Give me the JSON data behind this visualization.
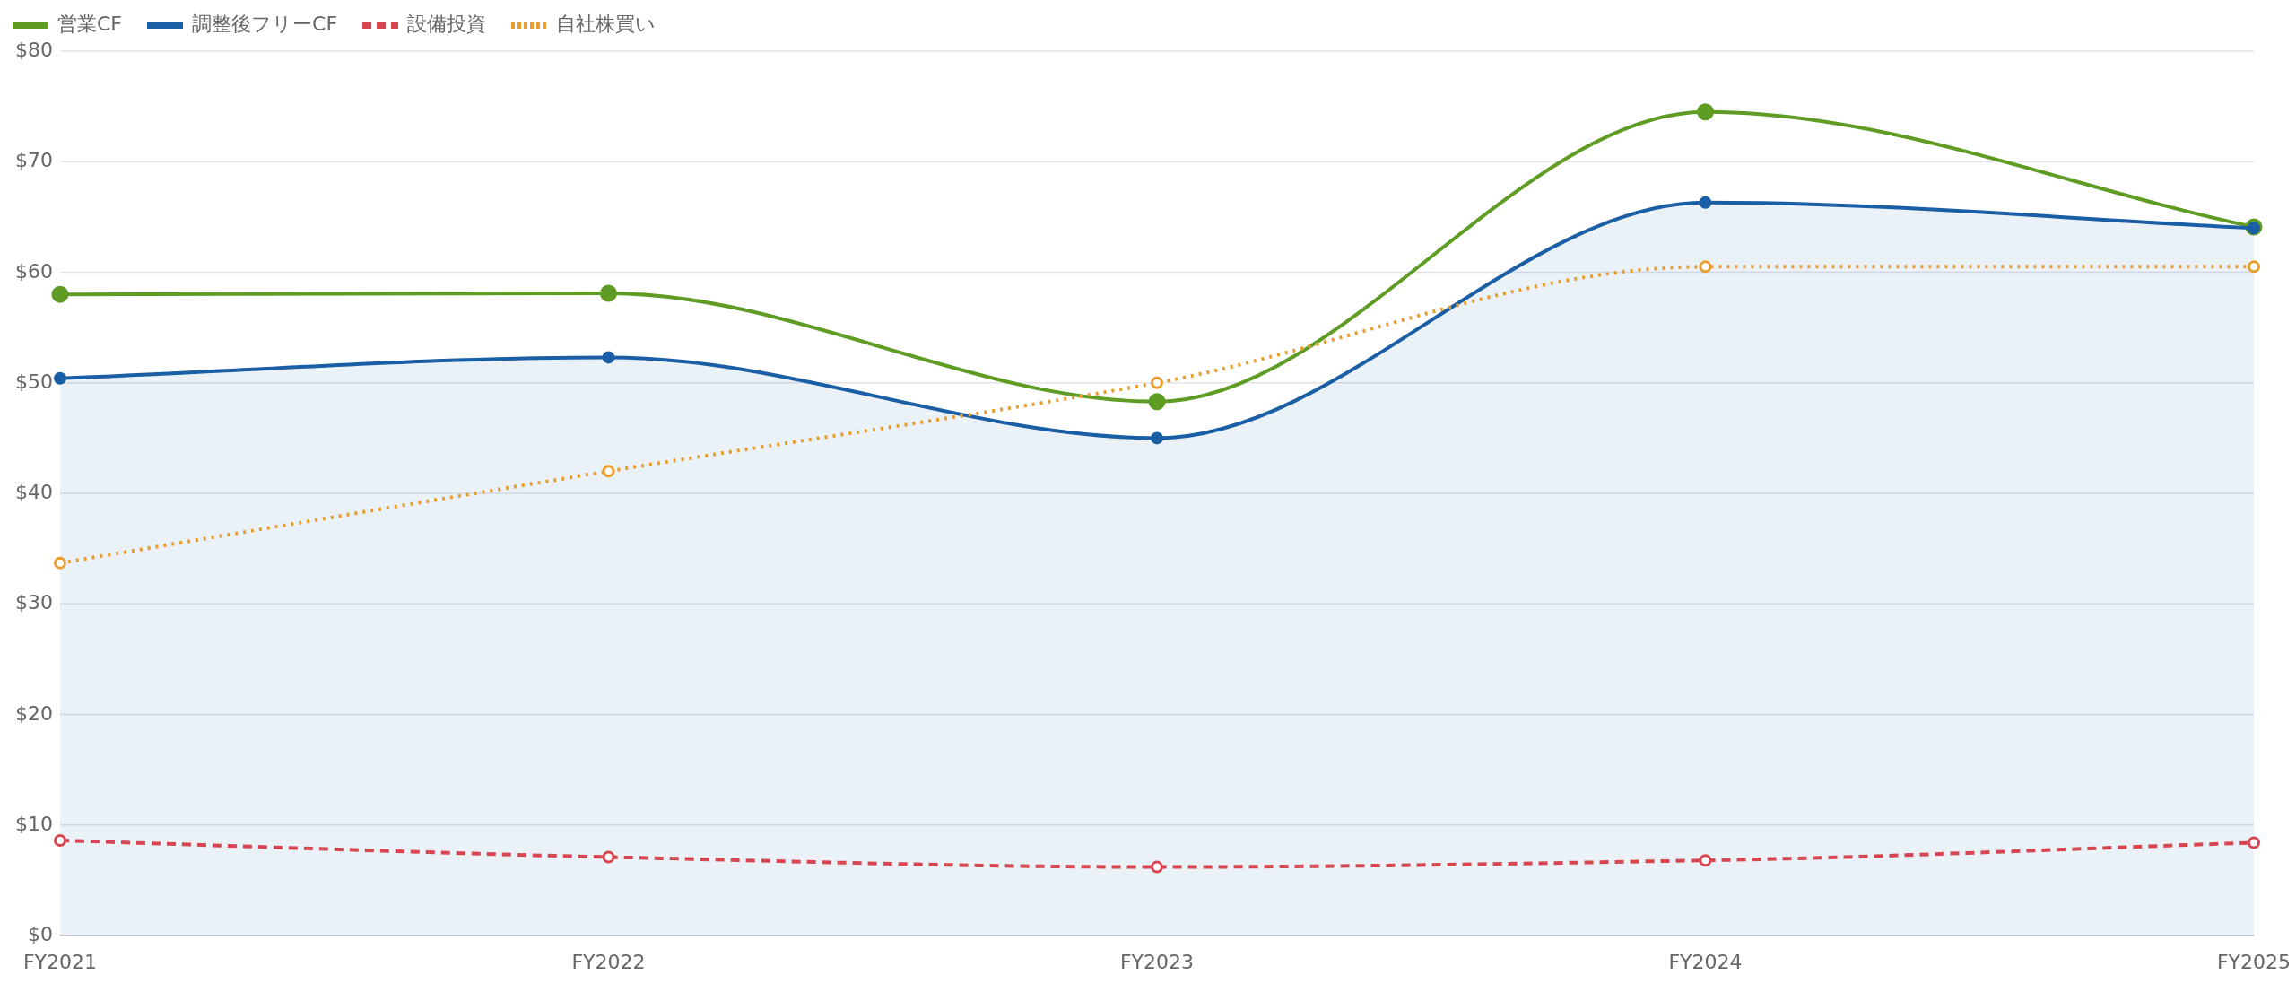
{
  "chart_data": {
    "type": "line",
    "categories": [
      "FY2021",
      "FY2022",
      "FY2023",
      "FY2024",
      "FY2025"
    ],
    "series": [
      {
        "name": "営業CF",
        "color": "#5e9c23",
        "line_style": "solid",
        "values": [
          58.0,
          58.1,
          48.3,
          74.5,
          64.1
        ]
      },
      {
        "name": "調整後フリーCF",
        "type": "area",
        "color": "#1a5fa5",
        "line_style": "solid",
        "values": [
          50.4,
          52.3,
          45.0,
          66.3,
          64.0
        ]
      },
      {
        "name": "設備投資",
        "color": "#d64550",
        "line_style": "dashed",
        "values": [
          8.6,
          7.1,
          6.2,
          6.8,
          8.4
        ]
      },
      {
        "name": "自社株買い",
        "color": "#e89d2e",
        "line_style": "dotted",
        "values": [
          33.7,
          42.0,
          50.0,
          60.5,
          60.5
        ]
      }
    ],
    "ylim": [
      0,
      80
    ],
    "yticks": [
      {
        "value": 0,
        "label": "$0"
      },
      {
        "value": 10,
        "label": "$10"
      },
      {
        "value": 20,
        "label": "$20"
      },
      {
        "value": 30,
        "label": "$30"
      },
      {
        "value": 40,
        "label": "$40"
      },
      {
        "value": 50,
        "label": "$50"
      },
      {
        "value": 60,
        "label": "$60"
      },
      {
        "value": 70,
        "label": "$70"
      },
      {
        "value": 80,
        "label": "$80"
      }
    ],
    "grid": "y",
    "legend": "top left",
    "marker": "circle"
  }
}
